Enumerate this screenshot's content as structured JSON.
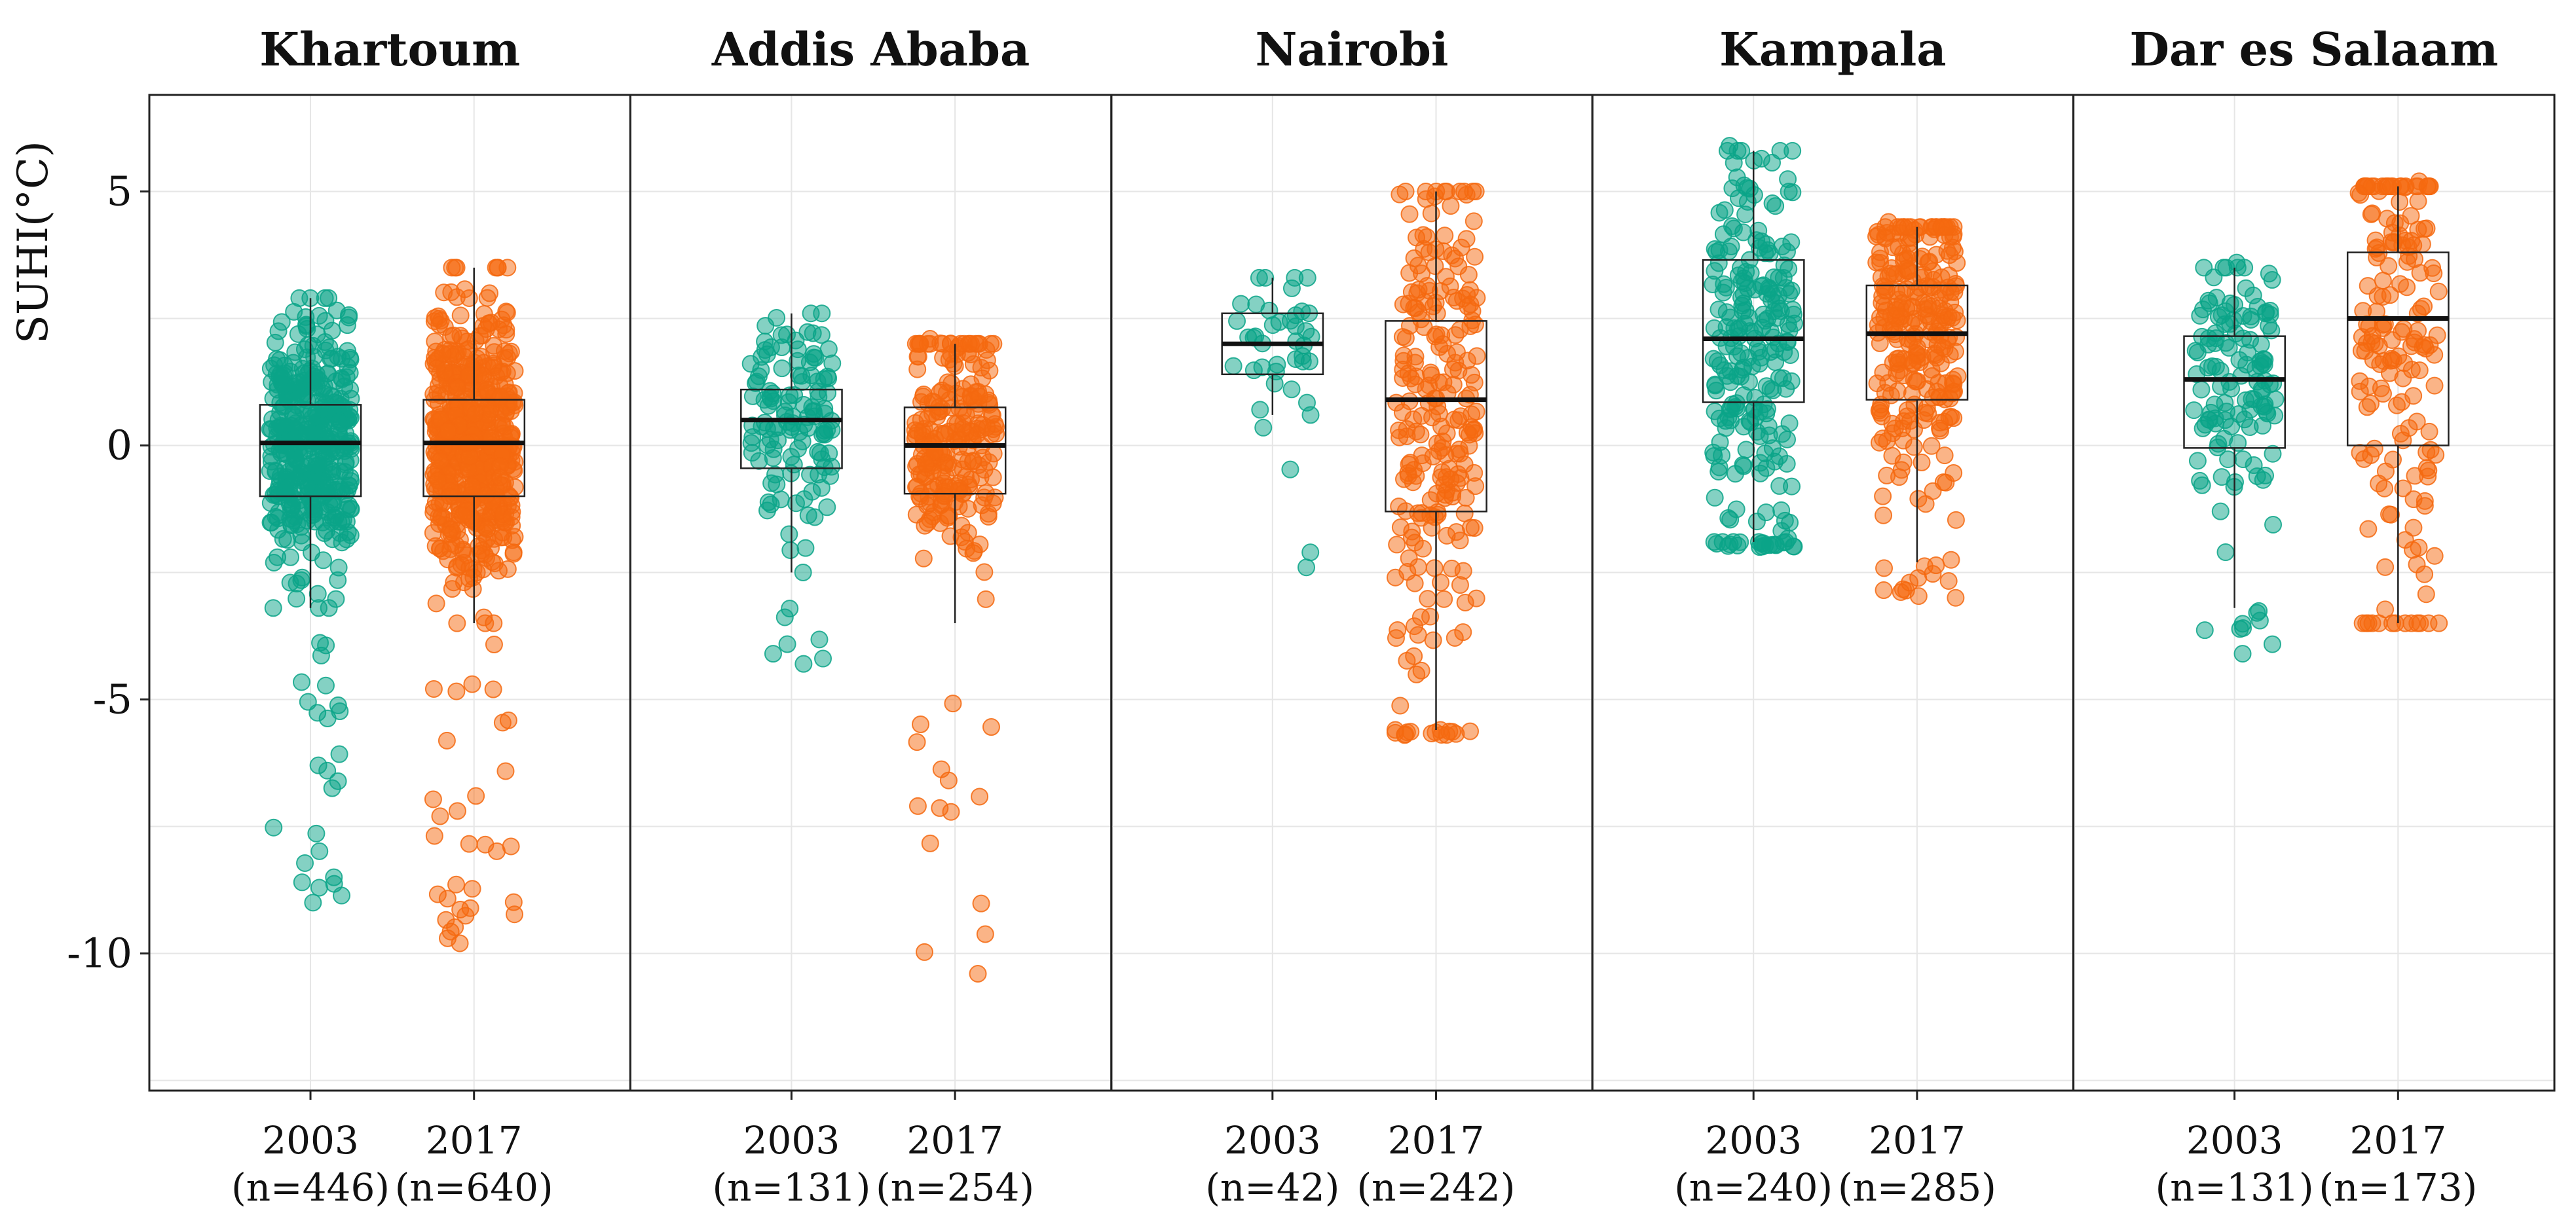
{
  "chart_data": {
    "type": "box-scatter",
    "ylabel": "SUHI(°C)",
    "ylim": [
      -12.7,
      6.9
    ],
    "yticks": [
      5,
      0,
      -5,
      -10
    ],
    "ytick_labels": [
      "5",
      "0",
      "-5",
      "-10"
    ],
    "grid": true,
    "colors": {
      "2003": "#0aa488",
      "2017": "#f5690f"
    },
    "facets": [
      {
        "title": "Khartoum",
        "groups": [
          {
            "year": "2003",
            "n_label": "(n=446)",
            "n": 446,
            "q1": -1.0,
            "median": 0.05,
            "q3": 0.8,
            "whisker_low": -3.2,
            "whisker_high": 2.9,
            "min": -9.0,
            "max": 2.9
          },
          {
            "year": "2017",
            "n_label": "(n=640)",
            "n": 640,
            "q1": -1.0,
            "median": 0.05,
            "q3": 0.9,
            "whisker_low": -3.5,
            "whisker_high": 3.5,
            "min": -9.8,
            "max": 3.5
          }
        ]
      },
      {
        "title": "Addis Ababa",
        "groups": [
          {
            "year": "2003",
            "n_label": "(n=131)",
            "n": 131,
            "q1": -0.45,
            "median": 0.5,
            "q3": 1.1,
            "whisker_low": -2.5,
            "whisker_high": 2.6,
            "min": -4.3,
            "max": 2.6
          },
          {
            "year": "2017",
            "n_label": "(n=254)",
            "n": 254,
            "q1": -0.95,
            "median": 0.0,
            "q3": 0.75,
            "whisker_low": -3.5,
            "whisker_high": 2.0,
            "min": -10.4,
            "max": 2.1
          }
        ]
      },
      {
        "title": "Nairobi",
        "groups": [
          {
            "year": "2003",
            "n_label": "(n=42)",
            "n": 42,
            "q1": 1.4,
            "median": 2.0,
            "q3": 2.6,
            "whisker_low": 0.6,
            "whisker_high": 3.3,
            "min": -2.4,
            "max": 3.3
          },
          {
            "year": "2017",
            "n_label": "(n=242)",
            "n": 242,
            "q1": -1.3,
            "median": 0.9,
            "q3": 2.45,
            "whisker_low": -5.6,
            "whisker_high": 5.0,
            "min": -5.7,
            "max": 5.0
          }
        ]
      },
      {
        "title": "Kampala",
        "groups": [
          {
            "year": "2003",
            "n_label": "(n=240)",
            "n": 240,
            "q1": 0.85,
            "median": 2.1,
            "q3": 3.65,
            "whisker_low": -1.9,
            "whisker_high": 5.8,
            "min": -2.0,
            "max": 5.9
          },
          {
            "year": "2017",
            "n_label": "(n=285)",
            "n": 285,
            "q1": 0.9,
            "median": 2.2,
            "q3": 3.15,
            "whisker_low": -2.3,
            "whisker_high": 4.3,
            "min": -3.0,
            "max": 4.4
          }
        ]
      },
      {
        "title": "Dar es Salaam",
        "groups": [
          {
            "year": "2003",
            "n_label": "(n=131)",
            "n": 131,
            "q1": -0.05,
            "median": 1.3,
            "q3": 2.15,
            "whisker_low": -3.2,
            "whisker_high": 3.5,
            "min": -4.1,
            "max": 3.6
          },
          {
            "year": "2017",
            "n_label": "(n=173)",
            "n": 173,
            "q1": 0.0,
            "median": 2.5,
            "q3": 3.8,
            "whisker_low": -3.5,
            "whisker_high": 5.1,
            "min": -3.5,
            "max": 5.2
          }
        ]
      }
    ]
  }
}
